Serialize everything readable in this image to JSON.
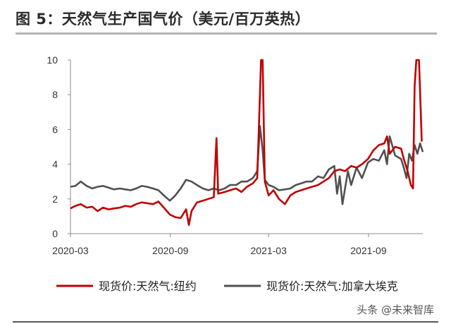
{
  "title": "图 5：天然气生产国气价（美元/百万英热）",
  "watermark": "头条 @未来智库",
  "chart_data": {
    "type": "line",
    "y_ticks": [
      0,
      2,
      4,
      6,
      8,
      10
    ],
    "ylim": [
      0,
      10
    ],
    "xlim": [
      "2020-03-01",
      "2021-12-10"
    ],
    "x_ticks": [
      "2020-03",
      "2020-09",
      "2021-03",
      "2021-09"
    ],
    "grid": false,
    "legend_position": "bottom",
    "series": [
      {
        "name": "现货价:天然气:纽约",
        "color": "#c00000",
        "points": [
          [
            "2020-03-01",
            1.45
          ],
          [
            "2020-03-10",
            1.6
          ],
          [
            "2020-03-20",
            1.7
          ],
          [
            "2020-03-31",
            1.5
          ],
          [
            "2020-04-10",
            1.55
          ],
          [
            "2020-04-20",
            1.3
          ],
          [
            "2020-04-30",
            1.5
          ],
          [
            "2020-05-10",
            1.4
          ],
          [
            "2020-05-20",
            1.45
          ],
          [
            "2020-05-31",
            1.5
          ],
          [
            "2020-06-10",
            1.6
          ],
          [
            "2020-06-20",
            1.55
          ],
          [
            "2020-06-30",
            1.7
          ],
          [
            "2020-07-10",
            1.8
          ],
          [
            "2020-07-20",
            1.75
          ],
          [
            "2020-07-31",
            1.7
          ],
          [
            "2020-08-10",
            1.85
          ],
          [
            "2020-08-20",
            1.5
          ],
          [
            "2020-08-31",
            1.1
          ],
          [
            "2020-09-10",
            0.95
          ],
          [
            "2020-09-20",
            0.9
          ],
          [
            "2020-09-30",
            1.4
          ],
          [
            "2020-10-05",
            0.5
          ],
          [
            "2020-10-10",
            1.3
          ],
          [
            "2020-10-20",
            1.8
          ],
          [
            "2020-10-31",
            1.9
          ],
          [
            "2020-11-10",
            2.0
          ],
          [
            "2020-11-20",
            2.1
          ],
          [
            "2020-11-25",
            5.5
          ],
          [
            "2020-11-28",
            2.3
          ],
          [
            "2020-12-10",
            2.4
          ],
          [
            "2020-12-20",
            2.5
          ],
          [
            "2020-12-31",
            2.6
          ],
          [
            "2021-01-10",
            2.4
          ],
          [
            "2021-01-20",
            2.7
          ],
          [
            "2021-01-31",
            2.9
          ],
          [
            "2021-02-08",
            3.2
          ],
          [
            "2021-02-12",
            7.0
          ],
          [
            "2021-02-15",
            10.0
          ],
          [
            "2021-02-18",
            10.0
          ],
          [
            "2021-02-22",
            3.0
          ],
          [
            "2021-03-01",
            2.2
          ],
          [
            "2021-03-10",
            2.5
          ],
          [
            "2021-03-20",
            2.0
          ],
          [
            "2021-03-31",
            1.7
          ],
          [
            "2021-04-10",
            2.2
          ],
          [
            "2021-04-20",
            2.4
          ],
          [
            "2021-04-30",
            2.5
          ],
          [
            "2021-05-10",
            2.6
          ],
          [
            "2021-05-20",
            2.7
          ],
          [
            "2021-05-31",
            2.8
          ],
          [
            "2021-06-10",
            3.0
          ],
          [
            "2021-06-20",
            3.2
          ],
          [
            "2021-06-30",
            3.6
          ],
          [
            "2021-07-10",
            3.7
          ],
          [
            "2021-07-20",
            3.6
          ],
          [
            "2021-07-31",
            3.9
          ],
          [
            "2021-08-10",
            3.8
          ],
          [
            "2021-08-20",
            4.0
          ],
          [
            "2021-08-31",
            4.3
          ],
          [
            "2021-09-10",
            4.8
          ],
          [
            "2021-09-20",
            5.1
          ],
          [
            "2021-09-30",
            5.2
          ],
          [
            "2021-10-05",
            5.6
          ],
          [
            "2021-10-10",
            4.6
          ],
          [
            "2021-10-20",
            5.0
          ],
          [
            "2021-10-31",
            4.9
          ],
          [
            "2021-11-05",
            4.3
          ],
          [
            "2021-11-12",
            3.6
          ],
          [
            "2021-11-18",
            2.8
          ],
          [
            "2021-11-22",
            2.6
          ],
          [
            "2021-11-25",
            8.5
          ],
          [
            "2021-11-28",
            10.0
          ],
          [
            "2021-12-03",
            10.0
          ],
          [
            "2021-12-08",
            5.3
          ]
        ]
      },
      {
        "name": "现货价:天然气:加拿大埃克",
        "color": "#505050",
        "points": [
          [
            "2020-03-01",
            2.7
          ],
          [
            "2020-03-10",
            2.75
          ],
          [
            "2020-03-20",
            3.0
          ],
          [
            "2020-03-31",
            2.75
          ],
          [
            "2020-04-10",
            2.6
          ],
          [
            "2020-04-20",
            2.7
          ],
          [
            "2020-04-30",
            2.75
          ],
          [
            "2020-05-10",
            2.65
          ],
          [
            "2020-05-20",
            2.55
          ],
          [
            "2020-05-31",
            2.6
          ],
          [
            "2020-06-10",
            2.55
          ],
          [
            "2020-06-20",
            2.5
          ],
          [
            "2020-06-30",
            2.6
          ],
          [
            "2020-07-10",
            2.75
          ],
          [
            "2020-07-20",
            2.7
          ],
          [
            "2020-07-31",
            2.6
          ],
          [
            "2020-08-10",
            2.5
          ],
          [
            "2020-08-20",
            2.2
          ],
          [
            "2020-08-31",
            1.9
          ],
          [
            "2020-09-10",
            2.2
          ],
          [
            "2020-09-20",
            2.6
          ],
          [
            "2020-09-30",
            3.1
          ],
          [
            "2020-10-10",
            3.0
          ],
          [
            "2020-10-20",
            2.8
          ],
          [
            "2020-10-31",
            2.6
          ],
          [
            "2020-11-10",
            2.5
          ],
          [
            "2020-11-20",
            2.6
          ],
          [
            "2020-11-30",
            2.5
          ],
          [
            "2020-12-10",
            2.6
          ],
          [
            "2020-12-20",
            2.8
          ],
          [
            "2020-12-31",
            2.8
          ],
          [
            "2021-01-10",
            3.0
          ],
          [
            "2021-01-20",
            3.0
          ],
          [
            "2021-01-31",
            3.2
          ],
          [
            "2021-02-08",
            3.6
          ],
          [
            "2021-02-13",
            6.2
          ],
          [
            "2021-02-18",
            4.8
          ],
          [
            "2021-02-22",
            3.1
          ],
          [
            "2021-03-01",
            2.8
          ],
          [
            "2021-03-10",
            2.7
          ],
          [
            "2021-03-20",
            2.5
          ],
          [
            "2021-03-31",
            2.55
          ],
          [
            "2021-04-10",
            2.6
          ],
          [
            "2021-04-20",
            2.8
          ],
          [
            "2021-04-30",
            2.9
          ],
          [
            "2021-05-10",
            3.0
          ],
          [
            "2021-05-20",
            3.0
          ],
          [
            "2021-05-31",
            3.3
          ],
          [
            "2021-06-10",
            3.2
          ],
          [
            "2021-06-20",
            3.7
          ],
          [
            "2021-06-30",
            3.9
          ],
          [
            "2021-07-05",
            2.3
          ],
          [
            "2021-07-10",
            3.3
          ],
          [
            "2021-07-15",
            1.7
          ],
          [
            "2021-07-25",
            3.6
          ],
          [
            "2021-07-31",
            2.8
          ],
          [
            "2021-08-10",
            3.8
          ],
          [
            "2021-08-20",
            3.2
          ],
          [
            "2021-08-31",
            4.1
          ],
          [
            "2021-09-10",
            4.3
          ],
          [
            "2021-09-20",
            4.2
          ],
          [
            "2021-09-30",
            4.8
          ],
          [
            "2021-10-05",
            4.0
          ],
          [
            "2021-10-10",
            5.6
          ],
          [
            "2021-10-20",
            4.5
          ],
          [
            "2021-10-31",
            4.3
          ],
          [
            "2021-11-05",
            3.8
          ],
          [
            "2021-11-10",
            3.2
          ],
          [
            "2021-11-15",
            4.6
          ],
          [
            "2021-11-20",
            4.2
          ],
          [
            "2021-11-25",
            5.1
          ],
          [
            "2021-11-30",
            4.6
          ],
          [
            "2021-12-05",
            5.2
          ],
          [
            "2021-12-10",
            4.7
          ]
        ]
      }
    ]
  }
}
